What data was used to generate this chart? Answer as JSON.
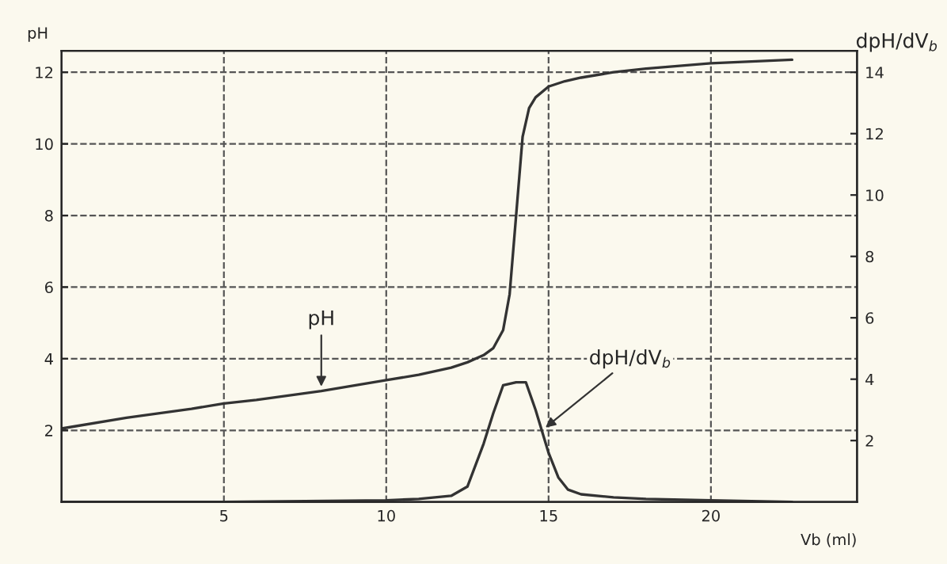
{
  "chart_data": {
    "type": "line",
    "xlabel": "Vb (ml)",
    "ylabel": "pH",
    "y2label": "dpH/dV$_{b}$",
    "xlim": [
      0,
      24.5
    ],
    "xticks": [
      5,
      10,
      15,
      20
    ],
    "ylim": [
      0,
      12.6
    ],
    "yticks": [
      2,
      4,
      6,
      8,
      10,
      12
    ],
    "y2lim": [
      0,
      14.7
    ],
    "y2ticks": [
      2,
      4,
      6,
      8,
      10,
      12,
      14
    ],
    "grid": true,
    "series": [
      {
        "color": "#333333",
        "x": [
          0,
          2,
          4,
          5,
          6,
          8,
          10,
          11,
          12,
          12.5,
          13,
          13.3,
          13.6,
          13.8,
          14,
          14.2,
          14.4,
          14.6,
          15,
          15.5,
          16,
          17,
          18,
          20,
          22.5
        ],
        "values": [
          2.05,
          2.35,
          2.6,
          2.75,
          2.85,
          3.1,
          3.4,
          3.55,
          3.75,
          3.9,
          4.1,
          4.3,
          4.8,
          5.8,
          8,
          10.2,
          11,
          11.3,
          11.6,
          11.75,
          11.85,
          12.0,
          12.1,
          12.25,
          12.35
        ]
      },
      {
        "color": "#333333",
        "axis": "y2",
        "x": [
          0,
          5,
          10,
          11,
          12,
          12.5,
          13,
          13.3,
          13.6,
          14,
          14.3,
          14.6,
          15,
          15.3,
          15.6,
          16,
          17,
          18,
          20,
          22.5
        ],
        "values": [
          0,
          0,
          0.05,
          0.1,
          0.2,
          0.5,
          1.9,
          2.9,
          3.8,
          3.9,
          3.9,
          3.0,
          1.6,
          0.8,
          0.4,
          0.25,
          0.15,
          0.1,
          0.05,
          0
        ]
      }
    ],
    "annotations": [
      {
        "text": "pH",
        "x": 8,
        "y": 3.1
      },
      {
        "text": "dpH/dV$_{b}$",
        "x": 14.8,
        "y": 2.0
      }
    ]
  }
}
